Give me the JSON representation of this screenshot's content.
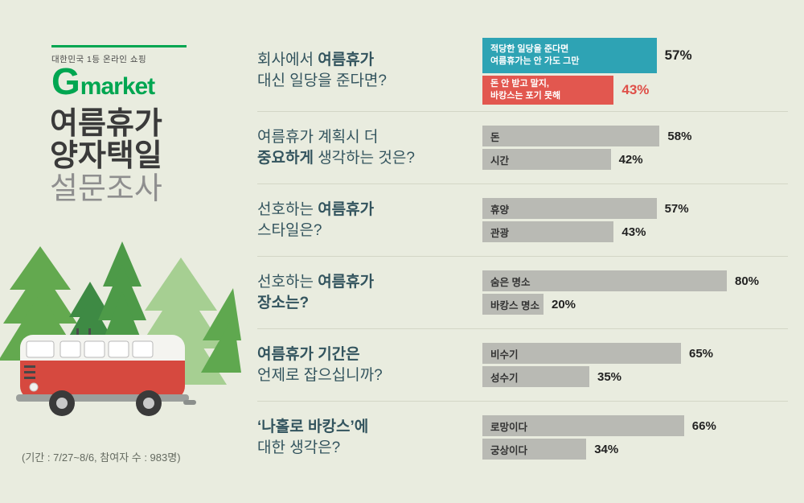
{
  "colors": {
    "page_bg": "#e9ecdf",
    "brand_green": "#00a651",
    "teal": "#2ea3b4",
    "red": "#e2574f",
    "bar_gray": "#b9bab4",
    "question": "#33545e",
    "divider": "#d3d6c6",
    "pct_dark": "#222222",
    "pct_red": "#df4f48"
  },
  "sidebar": {
    "logo_tagline": "대한민국 1등 온라인 쇼핑",
    "logo_g": "G",
    "logo_market": "market",
    "title_lines": [
      "여름휴가",
      "양자택일",
      "설문조사"
    ],
    "footnote": "(기간 : 7/27~8/6, 참여자 수 : 983명)"
  },
  "chart_data": {
    "type": "bar",
    "title": "여름휴가 양자택일 설문조사",
    "unit": "%",
    "xlim": [
      0,
      100
    ],
    "orientation": "horizontal",
    "questions": [
      {
        "lines": [
          [
            {
              "t": "회사에서 ",
              "b": false
            },
            {
              "t": "여름휴가",
              "b": true
            }
          ],
          [
            {
              "t": "대신 일당을 준다면?",
              "b": false
            }
          ]
        ],
        "bars": [
          {
            "label_lines": [
              "적당한 일당을 준다면",
              "여름휴가는 안 가도 그만"
            ],
            "value": 57,
            "style": "teal",
            "pct_style": "dark-big"
          },
          {
            "label_lines": [
              "돈 안 받고 말지,",
              "바캉스는 포기 못해"
            ],
            "value": 43,
            "style": "red",
            "pct_style": "red-big"
          }
        ]
      },
      {
        "lines": [
          [
            {
              "t": "여름휴가 계획시 더",
              "b": false
            }
          ],
          [
            {
              "t": "중요하게 ",
              "b": true
            },
            {
              "t": "생각하는 것은?",
              "b": false
            }
          ]
        ],
        "bars": [
          {
            "label_lines": [
              "돈"
            ],
            "value": 58,
            "style": "gray",
            "pct_style": "dark"
          },
          {
            "label_lines": [
              "시간"
            ],
            "value": 42,
            "style": "gray",
            "pct_style": "dark"
          }
        ]
      },
      {
        "lines": [
          [
            {
              "t": "선호하는 ",
              "b": false
            },
            {
              "t": "여름휴가",
              "b": true
            }
          ],
          [
            {
              "t": "스타일은?",
              "b": false
            }
          ]
        ],
        "bars": [
          {
            "label_lines": [
              "휴양"
            ],
            "value": 57,
            "style": "gray",
            "pct_style": "dark"
          },
          {
            "label_lines": [
              "관광"
            ],
            "value": 43,
            "style": "gray",
            "pct_style": "dark"
          }
        ]
      },
      {
        "lines": [
          [
            {
              "t": "선호하는 ",
              "b": false
            },
            {
              "t": "여름휴가",
              "b": true
            }
          ],
          [
            {
              "t": "장소는?",
              "b": true
            }
          ]
        ],
        "bars": [
          {
            "label_lines": [
              "숨은 명소"
            ],
            "value": 80,
            "style": "gray",
            "pct_style": "dark"
          },
          {
            "label_lines": [
              "바캉스 명소"
            ],
            "value": 20,
            "style": "gray",
            "pct_style": "dark"
          }
        ]
      },
      {
        "lines": [
          [
            {
              "t": "여름휴가 기간은",
              "b": true
            }
          ],
          [
            {
              "t": "언제로 잡으십니까?",
              "b": false
            }
          ]
        ],
        "bars": [
          {
            "label_lines": [
              "비수기"
            ],
            "value": 65,
            "style": "gray",
            "pct_style": "dark"
          },
          {
            "label_lines": [
              "성수기"
            ],
            "value": 35,
            "style": "gray",
            "pct_style": "dark"
          }
        ]
      },
      {
        "lines": [
          [
            {
              "t": "‘나홀로 바캉스’에",
              "b": true
            }
          ],
          [
            {
              "t": "대한 생각은?",
              "b": false
            }
          ]
        ],
        "bars": [
          {
            "label_lines": [
              "로망이다"
            ],
            "value": 66,
            "style": "gray",
            "pct_style": "dark"
          },
          {
            "label_lines": [
              "궁상이다"
            ],
            "value": 34,
            "style": "gray",
            "pct_style": "dark"
          }
        ]
      }
    ]
  }
}
